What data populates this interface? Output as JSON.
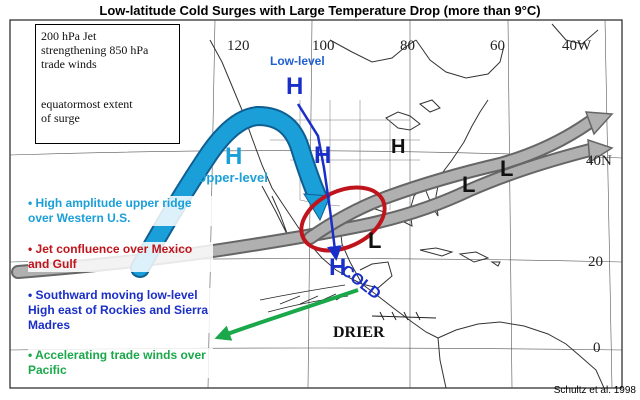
{
  "title": "Low-latitude Cold Surges with Large Temperature Drop (more than 9°C)",
  "legend": {
    "jet_line1": "200 hPa Jet",
    "jet_line2": "strengthening 850 hPa",
    "jet_line3": "trade winds",
    "surge_line1": "equatormost extent",
    "surge_line2": "of surge"
  },
  "longitude_labels": [
    "120",
    "100",
    "80",
    "60",
    "40W"
  ],
  "latitude_labels": [
    "40N",
    "20",
    "0"
  ],
  "pressure_systems": {
    "low_level_high": "H",
    "upper_level_high": "H",
    "mid_high": "H",
    "mexico_high": "H",
    "east_coast_high": "H",
    "low_atlantic_1": "L",
    "low_atlantic_2": "L",
    "low_gulf": "L"
  },
  "annotations": {
    "low_level": "Low-level",
    "upper_level": "Upper-level",
    "cold": "COLD",
    "drier": "DRIER"
  },
  "bullets": [
    {
      "text": "• High amplitude upper ridge over Western U.S.",
      "color": "#1a9fd8"
    },
    {
      "text": "• Jet confluence over Mexico and Gulf",
      "color": "#c0141c"
    },
    {
      "text": "• Southward moving low-level High east of Rockies and Sierra Madres",
      "color": "#1a2ec8"
    },
    {
      "text": "• Accelerating trade winds over Pacific",
      "color": "#1aa84a"
    }
  ],
  "colors": {
    "upper_level_jet": "#1a9fd8",
    "low_level_high_track": "#1a2ec8",
    "jet_confluence_ellipse": "#c0141c",
    "trade_wind_arrow": "#1aa84a",
    "jet_arrow_fill": "#b0b0b0"
  },
  "citation": "Schultz et al. 1998"
}
